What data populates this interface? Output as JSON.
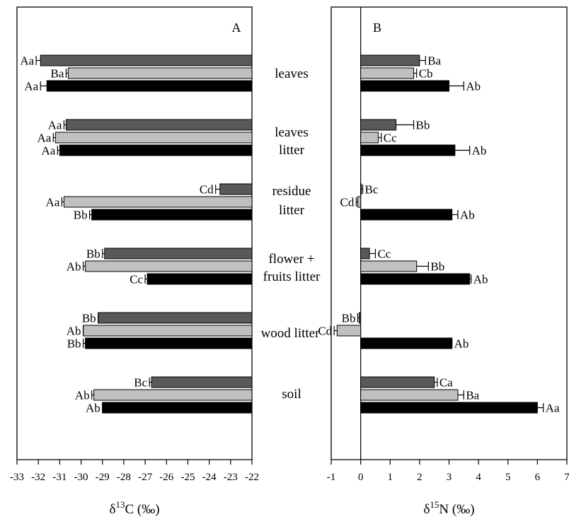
{
  "series_colors": [
    "#595959",
    "#c0c0c0",
    "#000000"
  ],
  "categories": [
    {
      "lines": [
        "leaves"
      ]
    },
    {
      "lines": [
        "leaves",
        "litter"
      ]
    },
    {
      "lines": [
        "residue",
        "litter"
      ]
    },
    {
      "lines": [
        "flower +",
        "fruits litter"
      ]
    },
    {
      "lines": [
        "wood litter"
      ]
    },
    {
      "lines": [
        "soil"
      ]
    }
  ],
  "chart_data": [
    {
      "type": "bar",
      "panel": "A",
      "orientation": "horizontal",
      "xlabel": {
        "prefix": "δ",
        "sup": "13",
        "suffix": "C (‰)"
      },
      "xlim": [
        -33,
        -22
      ],
      "xticks": [
        -33,
        -32,
        -31,
        -30,
        -29,
        -28,
        -27,
        -26,
        -25,
        -24,
        -23,
        -22
      ],
      "bars_from": -22,
      "groups": [
        {
          "category": "leaves",
          "bars": [
            {
              "value": -31.9,
              "err": 0.2,
              "label": "Aa"
            },
            {
              "value": -30.6,
              "err": 0.1,
              "label": "Ba"
            },
            {
              "value": -31.6,
              "err": 0.3,
              "label": "Aa"
            }
          ]
        },
        {
          "category": "leaves litter",
          "bars": [
            {
              "value": -30.7,
              "err": 0.1,
              "label": "Aa"
            },
            {
              "value": -31.2,
              "err": 0.1,
              "label": "Aa"
            },
            {
              "value": -31.0,
              "err": 0.1,
              "label": "Aa"
            }
          ]
        },
        {
          "category": "residue litter",
          "bars": [
            {
              "value": -23.5,
              "err": 0.2,
              "label": "Cd"
            },
            {
              "value": -30.8,
              "err": 0.1,
              "label": "Aa"
            },
            {
              "value": -29.5,
              "err": 0.1,
              "label": "Bb"
            }
          ]
        },
        {
          "category": "flower + fruits litter",
          "bars": [
            {
              "value": -28.9,
              "err": 0.1,
              "label": "Bb"
            },
            {
              "value": -29.8,
              "err": 0.1,
              "label": "Ab"
            },
            {
              "value": -26.9,
              "err": 0.1,
              "label": "Cc"
            }
          ]
        },
        {
          "category": "wood litter",
          "bars": [
            {
              "value": -29.2,
              "err": 0.0,
              "label": "Bb"
            },
            {
              "value": -29.9,
              "err": 0.0,
              "label": "Ab"
            },
            {
              "value": -29.8,
              "err": 0.1,
              "label": "Bb"
            }
          ]
        },
        {
          "category": "soil",
          "bars": [
            {
              "value": -26.7,
              "err": 0.1,
              "label": "Bc"
            },
            {
              "value": -29.4,
              "err": 0.1,
              "label": "Ab"
            },
            {
              "value": -29.0,
              "err": 0.0,
              "label": "Ab"
            }
          ]
        }
      ]
    },
    {
      "type": "bar",
      "panel": "B",
      "orientation": "horizontal",
      "xlabel": {
        "prefix": "δ",
        "sup": "15",
        "suffix": "N (‰)"
      },
      "xlim": [
        -1,
        7
      ],
      "xticks": [
        -1,
        0,
        1,
        2,
        3,
        4,
        5,
        6,
        7
      ],
      "bars_from": 0,
      "groups": [
        {
          "category": "leaves",
          "bars": [
            {
              "value": 2.0,
              "err": 0.2,
              "label": "Ba"
            },
            {
              "value": 1.8,
              "err": 0.1,
              "label": "Cb"
            },
            {
              "value": 3.0,
              "err": 0.5,
              "label": "Ab"
            }
          ]
        },
        {
          "category": "leaves litter",
          "bars": [
            {
              "value": 1.2,
              "err": 0.6,
              "label": "Bb"
            },
            {
              "value": 0.6,
              "err": 0.1,
              "label": "Cc"
            },
            {
              "value": 3.2,
              "err": 0.5,
              "label": "Ab"
            }
          ]
        },
        {
          "category": "residue litter",
          "bars": [
            {
              "value": 0.02,
              "err": 0.05,
              "label": "Bc"
            },
            {
              "value": -0.1,
              "err": 0.05,
              "label": "Cd"
            },
            {
              "value": 3.1,
              "err": 0.2,
              "label": "Ab"
            }
          ]
        },
        {
          "category": "flower + fruits litter",
          "bars": [
            {
              "value": 0.3,
              "err": 0.2,
              "label": "Cc"
            },
            {
              "value": 1.9,
              "err": 0.4,
              "label": "Bb"
            },
            {
              "value": 3.7,
              "err": 0.05,
              "label": "Ab"
            }
          ]
        },
        {
          "category": "wood litter",
          "bars": [
            {
              "value": -0.05,
              "err": 0.05,
              "label": "Bb"
            },
            {
              "value": -0.8,
              "err": 0.1,
              "label": "Cd"
            },
            {
              "value": 3.1,
              "err": 0.0,
              "label": "Ab"
            }
          ]
        },
        {
          "category": "soil",
          "bars": [
            {
              "value": 2.5,
              "err": 0.1,
              "label": "Ca"
            },
            {
              "value": 3.3,
              "err": 0.2,
              "label": "Ba"
            },
            {
              "value": 6.0,
              "err": 0.2,
              "label": "Aa"
            }
          ]
        }
      ]
    }
  ]
}
